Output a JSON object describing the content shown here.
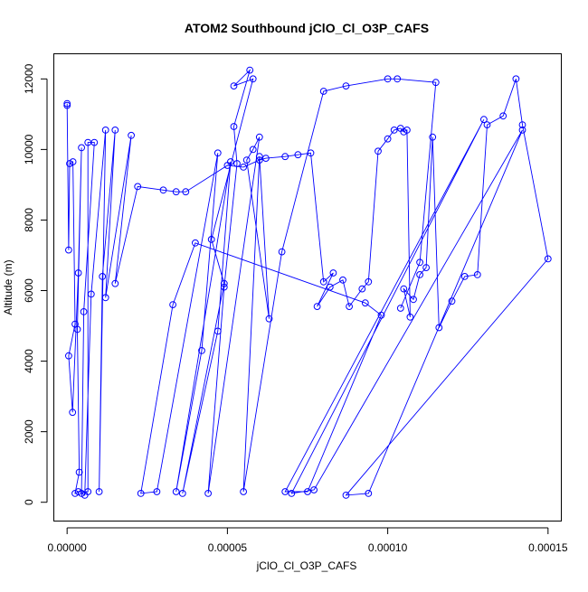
{
  "chart_data": {
    "type": "line",
    "title": "ATOM2 Southbound jClO_Cl_O3P_CAFS",
    "xlabel": "jClO_Cl_O3P_CAFS",
    "ylabel": "Altitude (m)",
    "xlim": [
      -4e-06,
      0.000154
    ],
    "ylim": [
      -520,
      12700
    ],
    "x_ticks": [
      0,
      5e-05,
      0.0001,
      0.00015
    ],
    "x_tick_labels": [
      "0.00000",
      "0.00005",
      "0.00010",
      "0.00015"
    ],
    "y_ticks": [
      0,
      2000,
      4000,
      6000,
      8000,
      10000,
      12000
    ],
    "y_tick_labels": [
      "0",
      "2000",
      "4000",
      "6000",
      "8000",
      "10000",
      "12000"
    ],
    "grid": false,
    "legend": "none",
    "series_color": "#0000ff",
    "markers": "open-circle",
    "series": [
      {
        "points": [
          [
            0.0,
            11300
          ],
          [
            0.0,
            11250
          ],
          [
            5e-07,
            7150
          ],
          [
            8e-07,
            9600
          ],
          [
            1.8e-06,
            9650
          ],
          [
            2.5e-06,
            5050
          ],
          [
            5e-07,
            4150
          ],
          [
            1.7e-06,
            2550
          ],
          [
            3.5e-06,
            6500
          ],
          [
            4.5e-06,
            10050
          ],
          [
            3.2e-06,
            4900
          ],
          [
            3.8e-06,
            850
          ],
          [
            2.5e-06,
            250
          ],
          [
            3.5e-06,
            300
          ],
          [
            6.5e-06,
            300
          ],
          [
            6.5e-06,
            10200
          ],
          [
            8.5e-06,
            10200
          ],
          [
            5.2e-06,
            5400
          ],
          [
            4.5e-06,
            250
          ],
          [
            5.5e-06,
            200
          ],
          [
            7.5e-06,
            5900
          ],
          [
            1.2e-05,
            10550
          ],
          [
            1e-05,
            300
          ],
          [
            1.1e-05,
            6400
          ],
          [
            1.5e-05,
            10550
          ],
          [
            1.2e-05,
            5800
          ],
          [
            2e-05,
            10400
          ],
          [
            1.5e-05,
            6200
          ],
          [
            2.2e-05,
            8950
          ],
          [
            3e-05,
            8850
          ],
          [
            3.4e-05,
            8800
          ],
          [
            3.7e-05,
            8800
          ],
          [
            5e-05,
            9550
          ],
          [
            5.5e-05,
            9500
          ],
          [
            6e-05,
            9700
          ],
          [
            6.2e-05,
            9750
          ],
          [
            6.8e-05,
            9800
          ],
          [
            7.2e-05,
            9850
          ],
          [
            7.6e-05,
            9900
          ],
          [
            8e-05,
            6250
          ],
          [
            8.3e-05,
            6500
          ],
          [
            7.8e-05,
            5550
          ],
          [
            8.2e-05,
            6100
          ],
          [
            8.6e-05,
            6300
          ],
          [
            8.8e-05,
            5550
          ],
          [
            9.2e-05,
            6050
          ],
          [
            9.4e-05,
            6250
          ],
          [
            9.7e-05,
            9950
          ],
          [
            0.0001,
            10300
          ],
          [
            0.000102,
            10550
          ],
          [
            0.000104,
            10600
          ],
          [
            0.000105,
            10500
          ],
          [
            0.000106,
            10550
          ],
          [
            0.000107,
            5250
          ],
          [
            0.000105,
            6050
          ],
          [
            0.000108,
            5750
          ],
          [
            0.00011,
            6450
          ],
          [
            0.000112,
            6650
          ],
          [
            0.000114,
            10350
          ],
          [
            0.000116,
            4950
          ],
          [
            0.00012,
            5700
          ],
          [
            0.000124,
            6400
          ],
          [
            0.000128,
            6450
          ],
          [
            0.000131,
            10700
          ],
          [
            0.000136,
            10950
          ],
          [
            0.00014,
            12000
          ],
          [
            0.000142,
            10700
          ],
          [
            0.00015,
            6900
          ],
          [
            8.7e-05,
            200
          ],
          [
            9.4e-05,
            250
          ],
          [
            0.000142,
            10550
          ],
          [
            7.7e-05,
            350
          ],
          [
            7e-05,
            250
          ],
          [
            0.00013,
            10850
          ],
          [
            6.8e-05,
            300
          ],
          [
            7.5e-05,
            300
          ],
          [
            9.8e-05,
            5300
          ],
          [
            9.3e-05,
            5650
          ],
          [
            4e-05,
            7350
          ],
          [
            3.3e-05,
            5600
          ],
          [
            2.3e-05,
            250
          ],
          [
            2.8e-05,
            300
          ],
          [
            4.7e-05,
            9900
          ],
          [
            4.2e-05,
            4300
          ],
          [
            3.4e-05,
            300
          ],
          [
            5.1e-05,
            9650
          ],
          [
            4.7e-05,
            4850
          ],
          [
            3.6e-05,
            250
          ],
          [
            4.9e-05,
            6200
          ],
          [
            4.5e-05,
            7450
          ],
          [
            5.8e-05,
            12000
          ],
          [
            5.2e-05,
            11800
          ],
          [
            5.7e-05,
            12250
          ],
          [
            5.2e-05,
            10650
          ],
          [
            5.3e-05,
            9600
          ],
          [
            4.9e-05,
            6100
          ],
          [
            4.4e-05,
            250
          ],
          [
            6e-05,
            10350
          ],
          [
            5.8e-05,
            10000
          ],
          [
            5.6e-05,
            9700
          ],
          [
            6.3e-05,
            5200
          ],
          [
            6e-05,
            9800
          ],
          [
            5.5e-05,
            300
          ],
          [
            6.7e-05,
            7100
          ],
          [
            8e-05,
            11650
          ],
          [
            8.7e-05,
            11800
          ],
          [
            0.0001,
            12000
          ],
          [
            0.000103,
            12000
          ],
          [
            0.000115,
            11900
          ],
          [
            0.00011,
            6800
          ],
          [
            0.000104,
            5500
          ]
        ]
      }
    ]
  }
}
